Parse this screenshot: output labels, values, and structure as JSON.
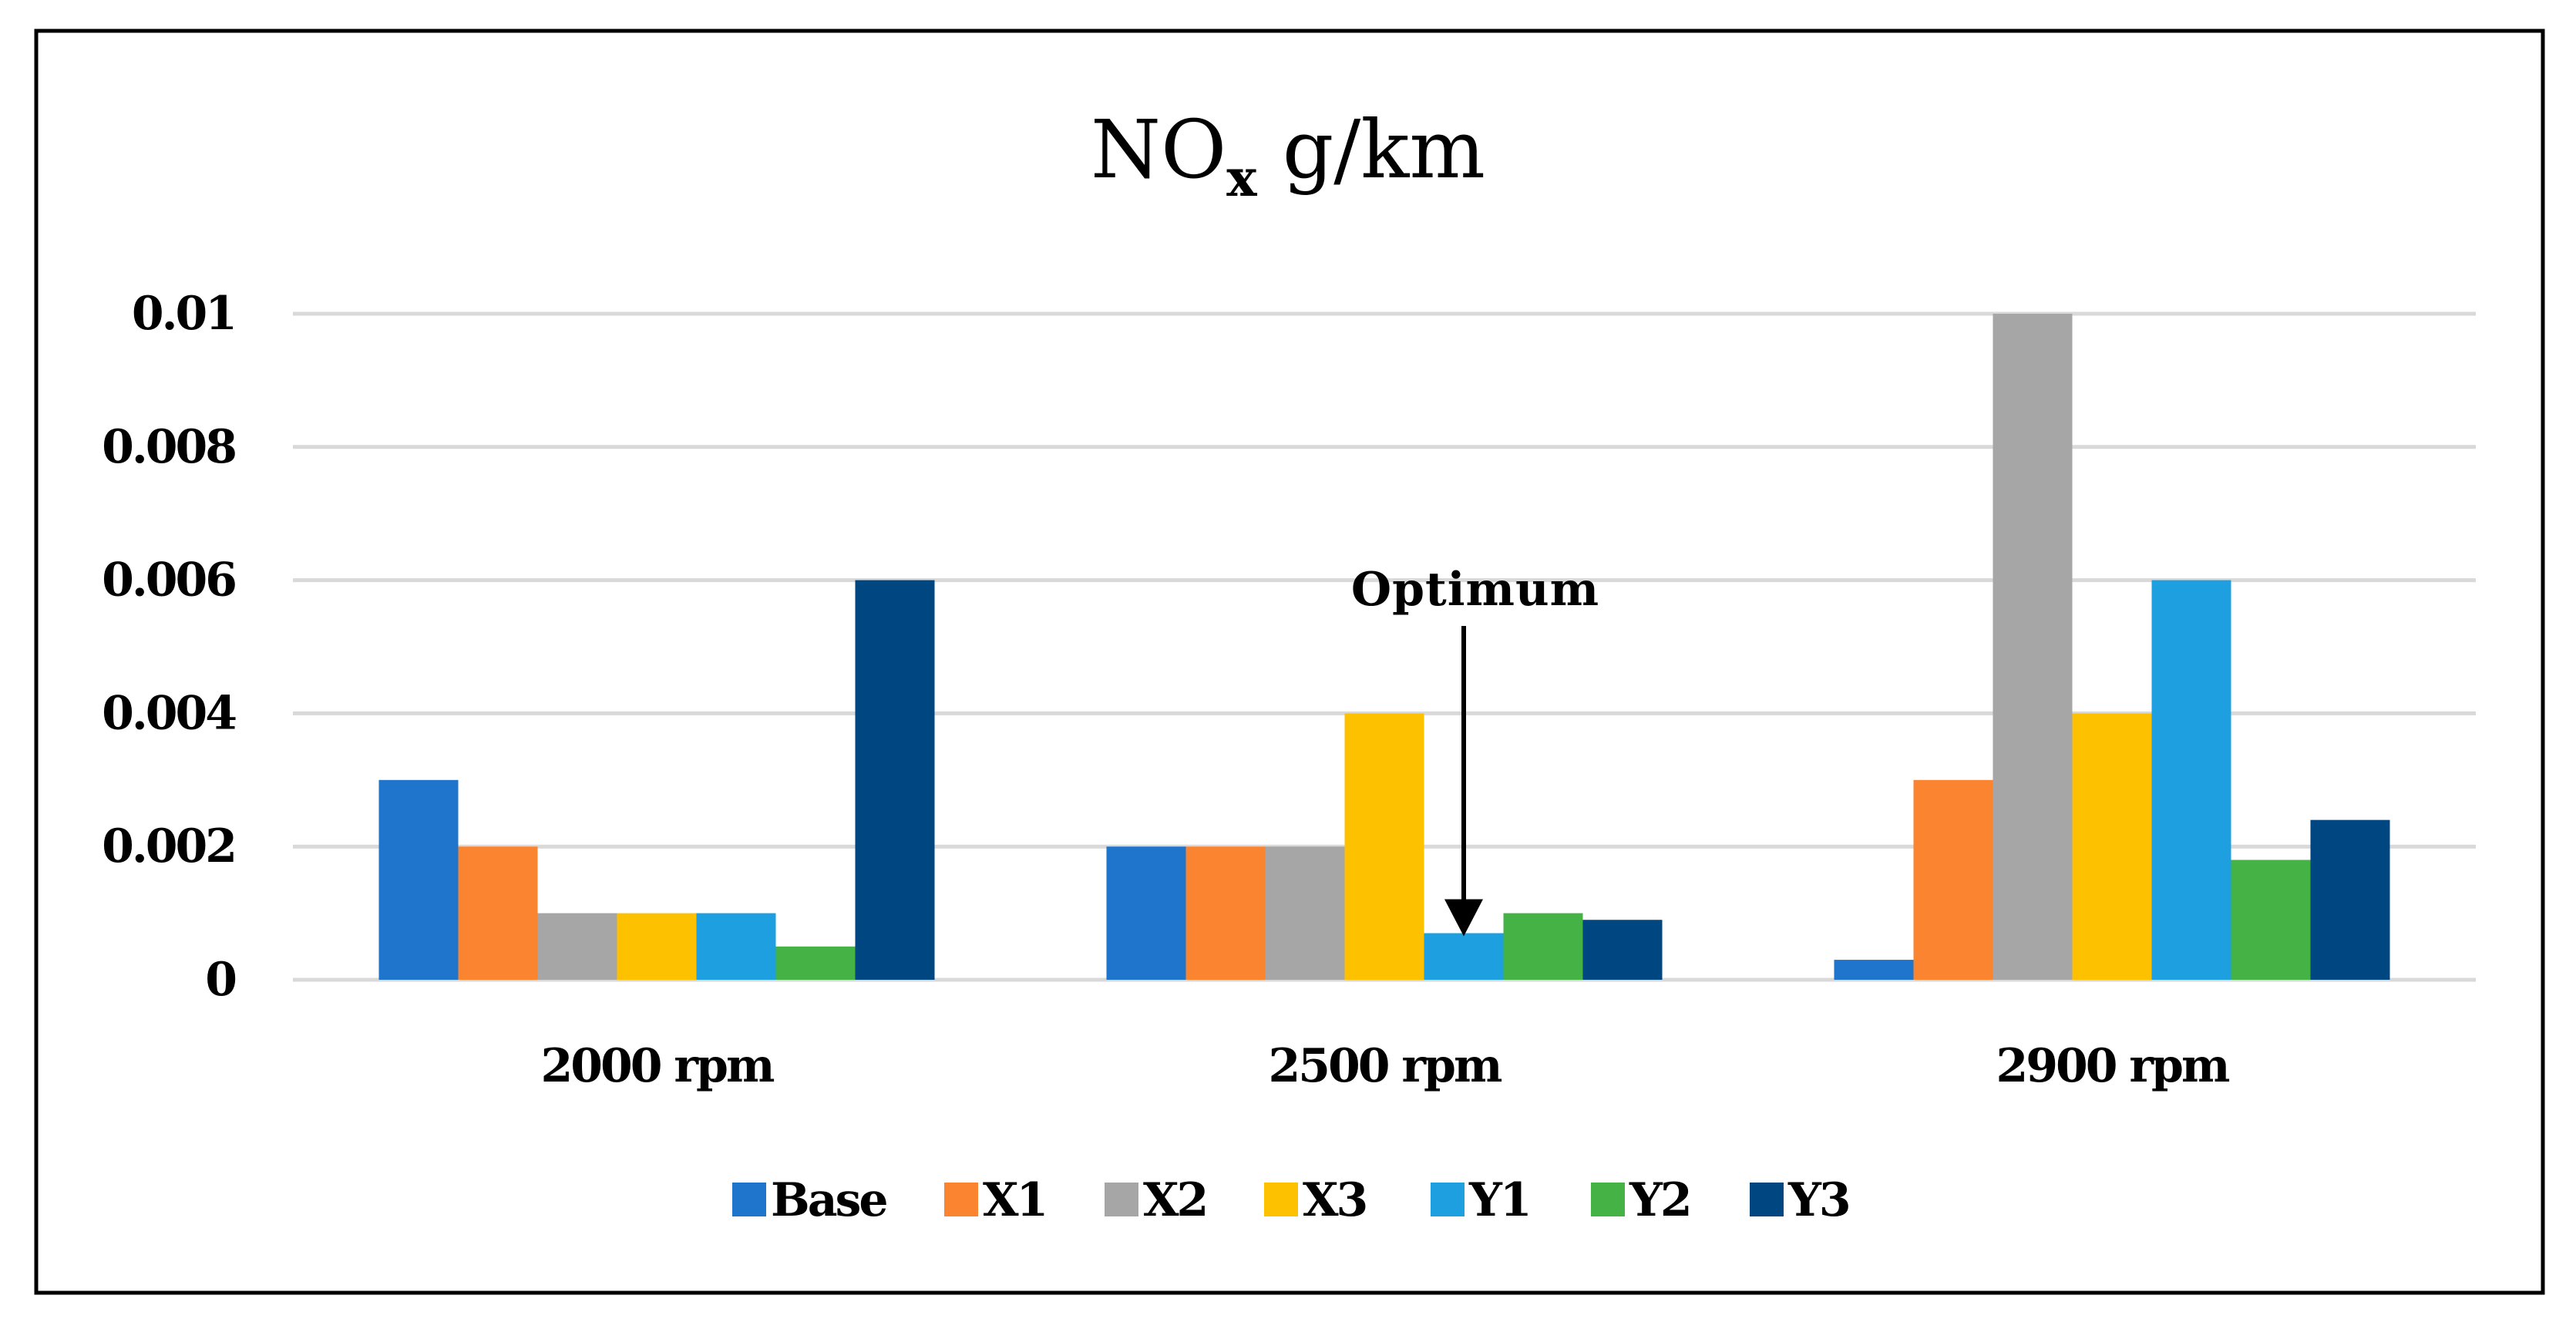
{
  "chart_data": {
    "type": "bar",
    "title_main": "NO",
    "title_subscript": "x",
    "title_unit": " g/km",
    "categories": [
      "2000 rpm",
      "2500 rpm",
      "2900 rpm"
    ],
    "series": [
      {
        "name": "Base",
        "color": "#1F74CC",
        "values": [
          0.003,
          0.002,
          0.0003
        ]
      },
      {
        "name": "X1",
        "color": "#FB8431",
        "values": [
          0.002,
          0.002,
          0.003
        ]
      },
      {
        "name": "X2",
        "color": "#A6A6A6",
        "values": [
          0.001,
          0.002,
          0.01
        ]
      },
      {
        "name": "X3",
        "color": "#FDC100",
        "values": [
          0.001,
          0.004,
          0.004
        ]
      },
      {
        "name": "Y1",
        "color": "#1EA0E0",
        "values": [
          0.001,
          0.0007,
          0.006
        ]
      },
      {
        "name": "Y2",
        "color": "#44B244",
        "values": [
          0.0005,
          0.001,
          0.0018
        ]
      },
      {
        "name": "Y3",
        "color": "#004680",
        "values": [
          0.006,
          0.0009,
          0.0024
        ]
      }
    ],
    "y_ticks": [
      "0",
      "0.002",
      "0.004",
      "0.006",
      "0.008",
      "0.01"
    ],
    "y_tick_values": [
      0,
      0.002,
      0.004,
      0.006,
      0.008,
      0.01
    ],
    "ylim": [
      0,
      0.01
    ],
    "grid": true,
    "legend_position": "bottom",
    "annotation": {
      "text": "Optimum",
      "category": "2500 rpm",
      "series": "Y1"
    }
  }
}
